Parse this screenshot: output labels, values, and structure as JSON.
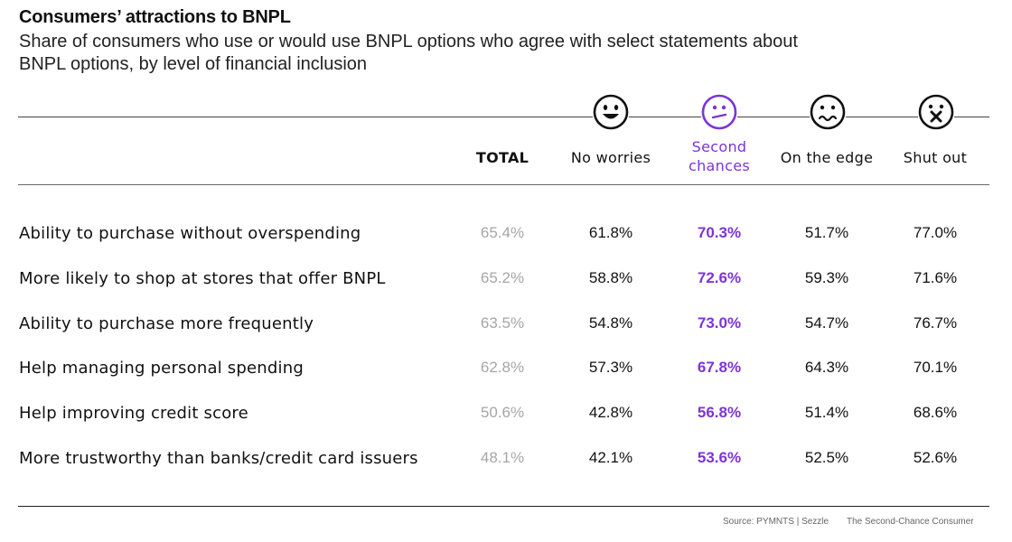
{
  "title": "Consumers’ attractions to BNPL",
  "subtitle": "Share of consumers who use or would use BNPL options who agree with select statements about BNPL options, by level of financial inclusion",
  "colors": {
    "accent": "#7b35d6",
    "total": "#a6a6a6",
    "text": "#111111"
  },
  "columns": [
    {
      "key": "total",
      "label": "TOTAL",
      "icon": null
    },
    {
      "key": "no_worries",
      "label": "No worries",
      "icon": "happy-face-icon"
    },
    {
      "key": "second_chances",
      "label": "Second chances",
      "icon": "neutral-face-icon"
    },
    {
      "key": "on_the_edge",
      "label": "On the edge",
      "icon": "worried-face-icon"
    },
    {
      "key": "shut_out",
      "label": "Shut out",
      "icon": "dizzy-face-icon"
    }
  ],
  "chart_data": {
    "type": "table",
    "title": "Consumers’ attractions to BNPL",
    "subtitle": "Share of consumers who use or would use BNPL options who agree with select statements about BNPL options, by level of financial inclusion",
    "columns": [
      "TOTAL",
      "No worries",
      "Second chances",
      "On the edge",
      "Shut out"
    ],
    "rows": [
      {
        "label": "Ability to purchase without overspending",
        "values": [
          "65.4%",
          "61.8%",
          "70.3%",
          "51.7%",
          "77.0%"
        ]
      },
      {
        "label": "More likely to shop at stores that offer BNPL",
        "values": [
          "65.2%",
          "58.8%",
          "72.6%",
          "59.3%",
          "71.6%"
        ]
      },
      {
        "label": "Ability to purchase more frequently",
        "values": [
          "63.5%",
          "54.8%",
          "73.0%",
          "54.7%",
          "76.7%"
        ]
      },
      {
        "label": "Help managing personal spending",
        "values": [
          "62.8%",
          "57.3%",
          "67.8%",
          "64.3%",
          "70.1%"
        ]
      },
      {
        "label": "Help improving credit score",
        "values": [
          "50.6%",
          "42.8%",
          "56.8%",
          "51.4%",
          "68.6%"
        ]
      },
      {
        "label": "More trustworthy than banks/credit card issuers",
        "values": [
          "48.1%",
          "42.1%",
          "53.6%",
          "52.5%",
          "52.6%"
        ]
      }
    ]
  },
  "footer": {
    "source": "Source: PYMNTS | Sezzle",
    "report": "The Second-Chance Consumer"
  }
}
